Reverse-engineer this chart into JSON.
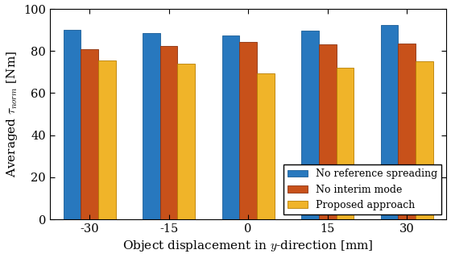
{
  "categories": [
    -30,
    -15,
    0,
    15,
    30
  ],
  "no_ref_spreading": [
    90.0,
    88.5,
    87.5,
    89.5,
    92.5
  ],
  "no_interim_mode": [
    81.0,
    82.5,
    84.5,
    83.0,
    83.5
  ],
  "proposed": [
    75.5,
    74.0,
    69.5,
    72.0,
    75.0
  ],
  "bar_colors": [
    "#2878BE",
    "#C8511A",
    "#F0B429"
  ],
  "bar_edge_colors": [
    "#1a5c96",
    "#8b3210",
    "#b87d00"
  ],
  "xlabel": "Object displacement in $y$-direction [mm]",
  "ylabel": "Averaged $\\tau_{norm}$ [Nm]",
  "ylim": [
    0,
    100
  ],
  "yticks": [
    0,
    20,
    40,
    60,
    80,
    100
  ],
  "legend_labels": [
    "No reference spreading",
    "No interim mode",
    "Proposed approach"
  ],
  "bar_width": 0.22,
  "title": ""
}
